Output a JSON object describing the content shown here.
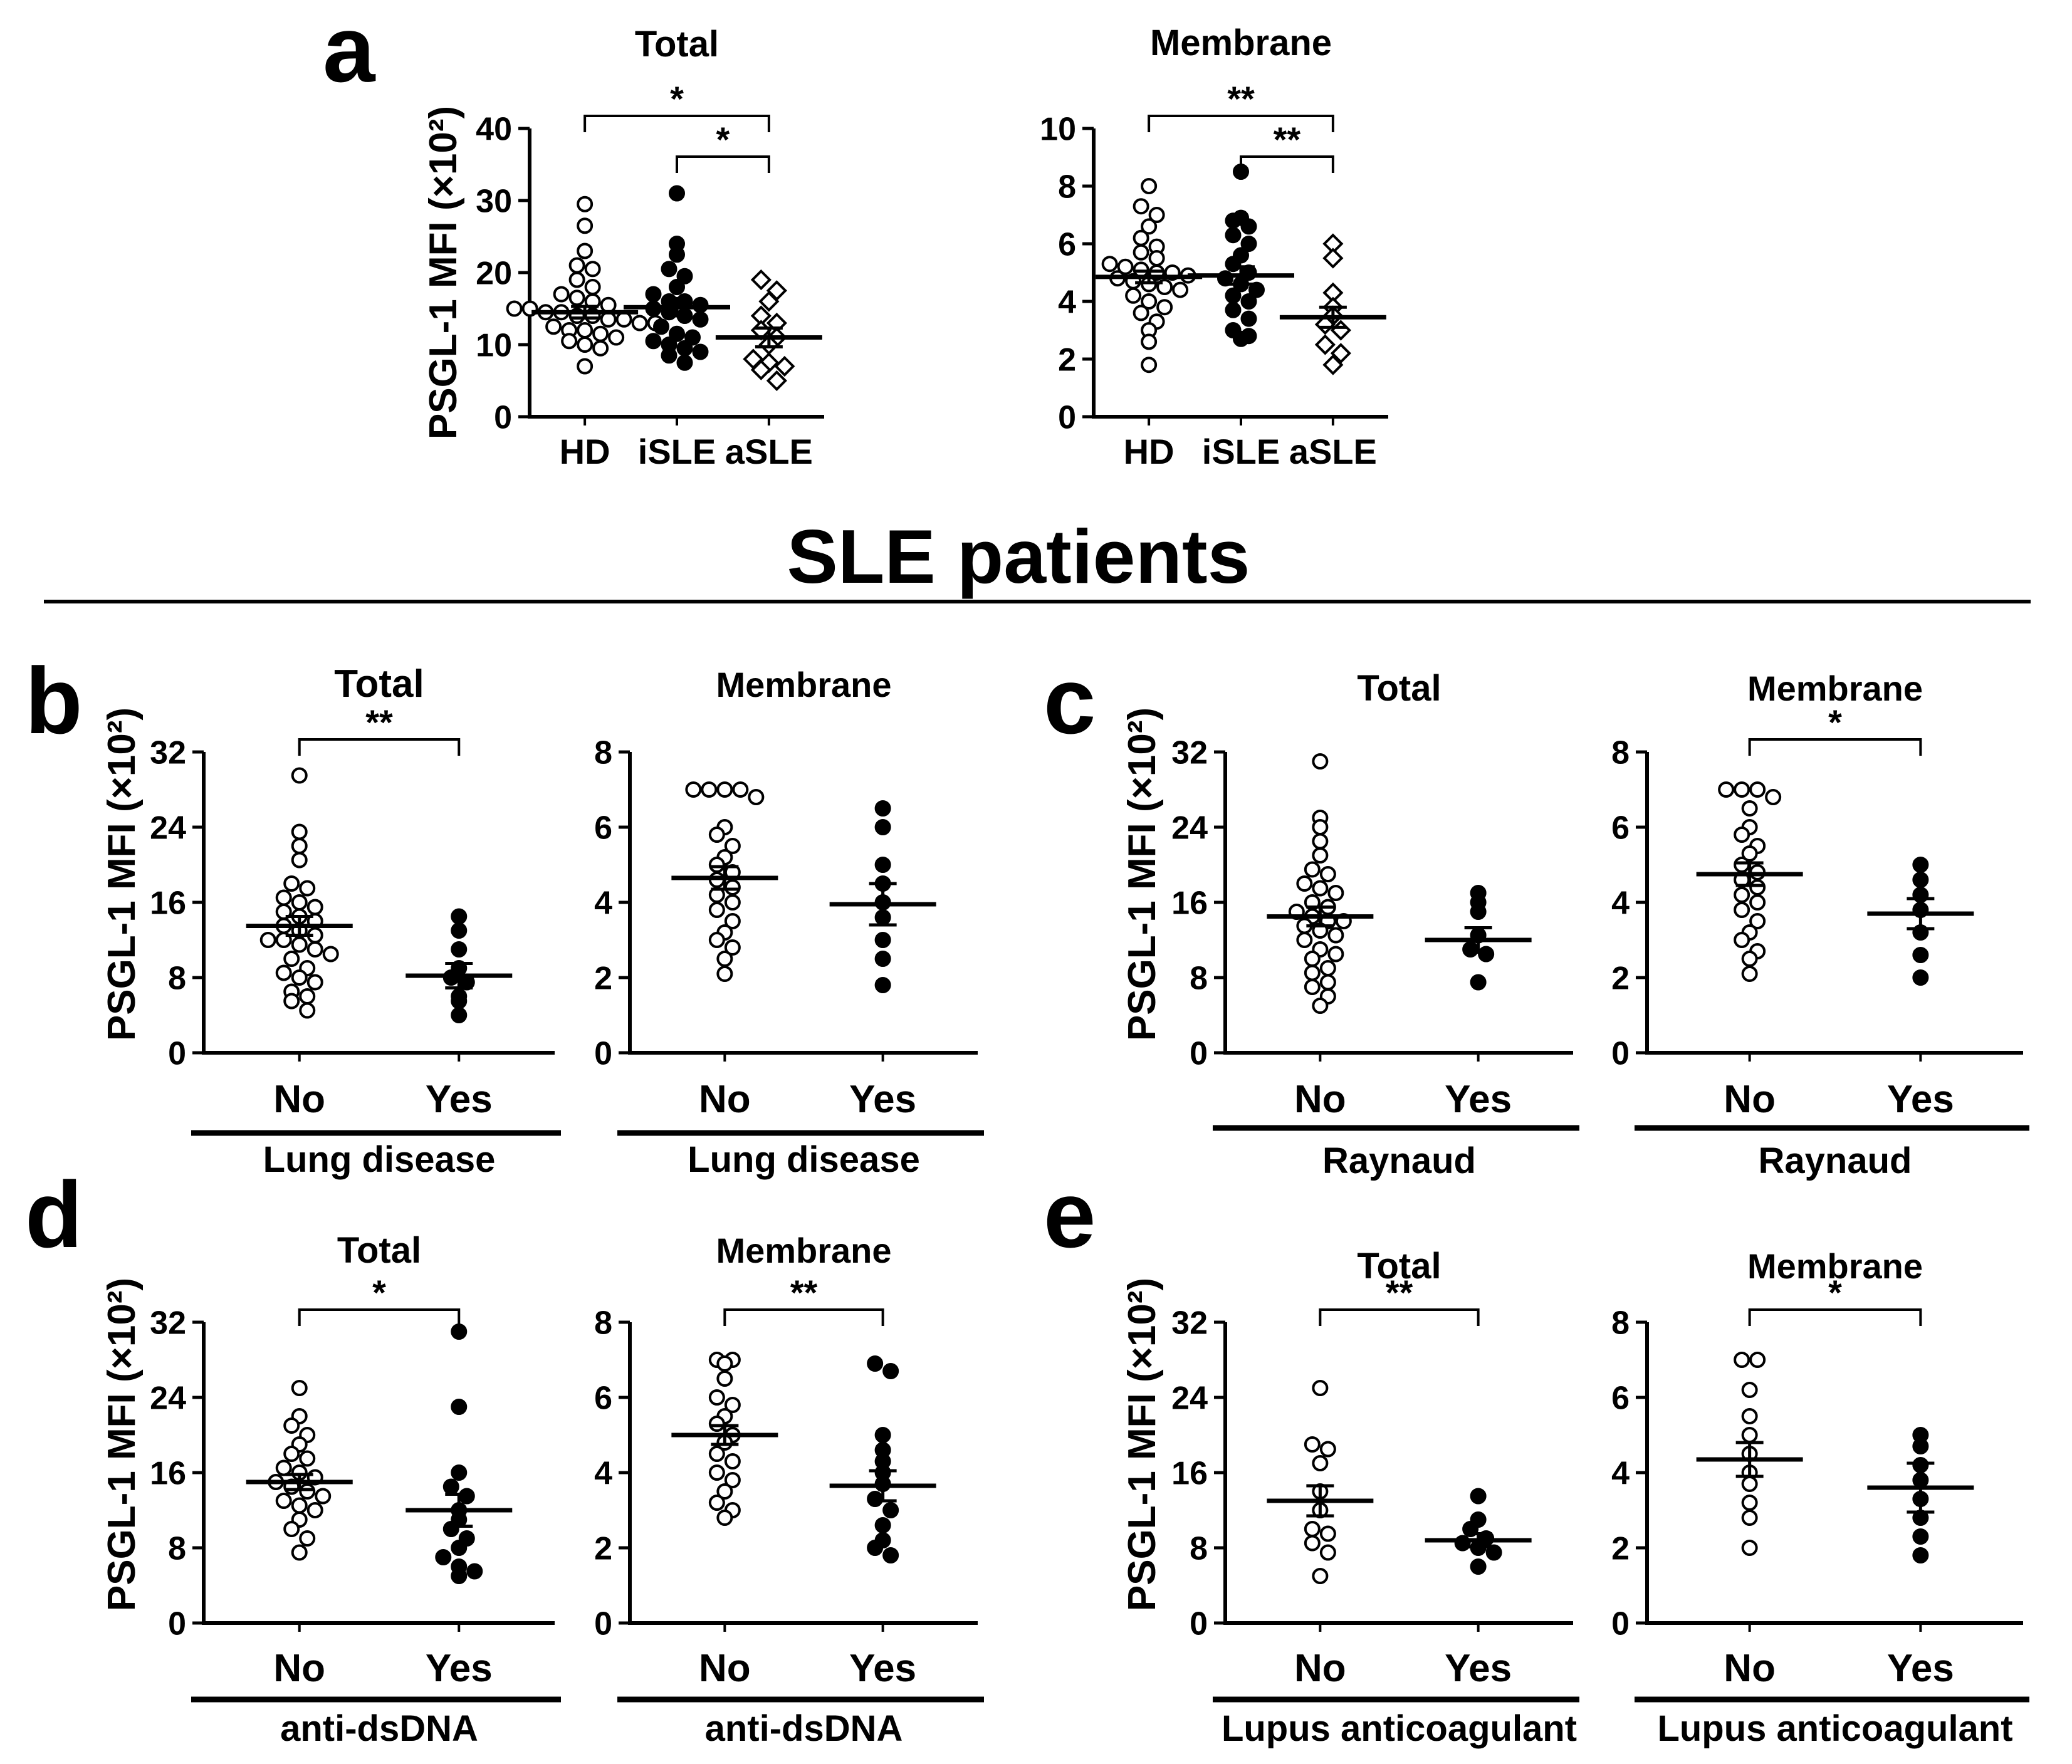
{
  "figure": {
    "section_heading": "SLE patients",
    "y_axis_label": "PSGL-1 MFI (×10²)",
    "panel_letters": {
      "a": "a",
      "b": "b",
      "c": "c",
      "d": "d",
      "e": "e"
    }
  },
  "chart_data": [
    {
      "id": "a-total",
      "panel": "a",
      "type": "scatter",
      "title": "Total",
      "ylabel": "PSGL-1 MFI (×10²)",
      "xlabel": "",
      "ylim": [
        0,
        40
      ],
      "yticks": [
        0,
        10,
        20,
        30,
        40
      ],
      "categories": [
        "HD",
        "iSLE",
        "aSLE"
      ],
      "series": [
        {
          "name": "HD",
          "marker": "open-circle",
          "mean": 14.5,
          "sem": 0.8,
          "values": [
            29.5,
            26.5,
            23,
            21,
            20.5,
            19,
            18,
            17,
            16.5,
            16,
            15.5,
            15,
            15,
            14.5,
            14.5,
            14,
            14,
            13.5,
            13.5,
            13,
            13,
            12.5,
            12,
            12,
            11.5,
            11,
            10.5,
            10,
            9.5,
            7
          ]
        },
        {
          "name": "iSLE",
          "marker": "filled-circle",
          "mean": 15.2,
          "sem": 1.2,
          "values": [
            31,
            24,
            22.5,
            20.5,
            19.5,
            18,
            17,
            16,
            16,
            15.5,
            15,
            14.5,
            14,
            13.5,
            12.5,
            11.5,
            11,
            10.5,
            10,
            9.5,
            9,
            8.5,
            7.5
          ]
        },
        {
          "name": "aSLE",
          "marker": "open-diamond",
          "mean": 11,
          "sem": 1.3,
          "values": [
            19,
            17.5,
            16,
            14,
            13,
            12,
            11,
            10,
            8,
            7.5,
            7,
            6.5,
            5
          ]
        }
      ],
      "significance": [
        {
          "from": "HD",
          "to": "aSLE",
          "label": "*"
        },
        {
          "from": "iSLE",
          "to": "aSLE",
          "label": "*"
        }
      ]
    },
    {
      "id": "a-membrane",
      "panel": "a",
      "type": "scatter",
      "title": "Membrane",
      "ylabel": "",
      "xlabel": "",
      "ylim": [
        0,
        10
      ],
      "yticks": [
        0,
        2,
        4,
        6,
        8,
        10
      ],
      "categories": [
        "HD",
        "iSLE",
        "aSLE"
      ],
      "series": [
        {
          "name": "HD",
          "marker": "open-circle",
          "mean": 4.85,
          "sem": 0.2,
          "values": [
            8,
            7.3,
            7,
            6.6,
            6.2,
            5.9,
            5.7,
            5.5,
            5.3,
            5.2,
            5.1,
            5,
            5,
            4.9,
            4.8,
            4.7,
            4.6,
            4.5,
            4.4,
            4.2,
            4,
            3.8,
            3.6,
            3.3,
            3,
            2.6,
            1.8
          ]
        },
        {
          "name": "iSLE",
          "marker": "filled-circle",
          "mean": 4.9,
          "sem": 0.3,
          "values": [
            8.5,
            6.9,
            6.8,
            6.6,
            6.3,
            6,
            5.6,
            5.3,
            5,
            4.8,
            4.6,
            4.4,
            4.2,
            4,
            3.7,
            3.4,
            3,
            2.8,
            2.7
          ]
        },
        {
          "name": "aSLE",
          "marker": "open-diamond",
          "mean": 3.45,
          "sem": 0.35,
          "values": [
            6,
            5.5,
            4.3,
            3.8,
            3.5,
            3.2,
            3,
            2.5,
            2.2,
            1.8
          ]
        }
      ],
      "significance": [
        {
          "from": "HD",
          "to": "aSLE",
          "label": "**"
        },
        {
          "from": "iSLE",
          "to": "aSLE",
          "label": "**"
        }
      ]
    },
    {
      "id": "b-total",
      "panel": "b",
      "type": "scatter",
      "title": "Total",
      "ylabel": "PSGL-1 MFI (×10²)",
      "xlabel": "Lung disease",
      "ylim": [
        0,
        32
      ],
      "yticks": [
        0,
        8,
        16,
        24,
        32
      ],
      "categories": [
        "No",
        "Yes"
      ],
      "series": [
        {
          "name": "No",
          "marker": "open-circle",
          "mean": 13.5,
          "sem": 1.0,
          "values": [
            29.5,
            23.5,
            22,
            20.5,
            18,
            17.5,
            16.5,
            16,
            15.5,
            15,
            14.5,
            14,
            13.5,
            13,
            12.5,
            12,
            12,
            11.5,
            11,
            10.5,
            10,
            9,
            8.5,
            8,
            7.5,
            6.5,
            6,
            5.5,
            4.5
          ]
        },
        {
          "name": "Yes",
          "marker": "filled-circle",
          "mean": 8.2,
          "sem": 1.3,
          "values": [
            14.5,
            13,
            11,
            9,
            8,
            7.5,
            6,
            5.5,
            4
          ]
        }
      ],
      "significance": [
        {
          "from": "No",
          "to": "Yes",
          "label": "**"
        }
      ]
    },
    {
      "id": "b-membrane",
      "panel": "b",
      "type": "scatter",
      "title": "Membrane",
      "ylabel": "",
      "xlabel": "Lung disease",
      "ylim": [
        0,
        8
      ],
      "yticks": [
        0,
        2,
        4,
        6,
        8
      ],
      "categories": [
        "No",
        "Yes"
      ],
      "series": [
        {
          "name": "No",
          "marker": "open-circle",
          "mean": 4.65,
          "sem": 0.3,
          "values": [
            7,
            7,
            7,
            7,
            6.8,
            6,
            5.8,
            5.5,
            5.2,
            5,
            4.8,
            4.6,
            4.4,
            4.2,
            4,
            3.8,
            3.5,
            3.2,
            3,
            2.8,
            2.5,
            2.1
          ]
        },
        {
          "name": "Yes",
          "marker": "filled-circle",
          "mean": 3.95,
          "sem": 0.55,
          "values": [
            6.5,
            6,
            5,
            4.5,
            4,
            3.6,
            3,
            2.5,
            1.8
          ]
        }
      ],
      "significance": []
    },
    {
      "id": "c-total",
      "panel": "c",
      "type": "scatter",
      "title": "Total",
      "ylabel": "PSGL-1 MFI (×10²)",
      "xlabel": "Raynaud",
      "ylim": [
        0,
        32
      ],
      "yticks": [
        0,
        8,
        16,
        24,
        32
      ],
      "categories": [
        "No",
        "Yes"
      ],
      "series": [
        {
          "name": "No",
          "marker": "open-circle",
          "mean": 14.5,
          "sem": 1.0,
          "values": [
            31,
            25,
            24,
            22.5,
            21,
            19.5,
            19,
            18,
            17.5,
            17,
            16,
            15.5,
            15,
            14.5,
            14,
            14,
            13.5,
            13,
            12.5,
            12,
            11,
            10.5,
            10,
            9,
            8.5,
            7.5,
            7,
            6,
            5
          ]
        },
        {
          "name": "Yes",
          "marker": "filled-circle",
          "mean": 12,
          "sem": 1.3,
          "values": [
            17,
            16,
            15,
            12.5,
            11,
            10.5,
            7.5
          ]
        }
      ],
      "significance": []
    },
    {
      "id": "c-membrane",
      "panel": "c",
      "type": "scatter",
      "title": "Membrane",
      "ylabel": "",
      "xlabel": "Raynaud",
      "ylim": [
        0,
        8
      ],
      "yticks": [
        0,
        2,
        4,
        6,
        8
      ],
      "categories": [
        "No",
        "Yes"
      ],
      "series": [
        {
          "name": "No",
          "marker": "open-circle",
          "mean": 4.75,
          "sem": 0.3,
          "values": [
            7,
            7,
            7,
            6.8,
            6.5,
            6,
            5.8,
            5.5,
            5.3,
            5,
            4.8,
            4.6,
            4.4,
            4.2,
            4,
            3.8,
            3.5,
            3.2,
            3,
            2.7,
            2.5,
            2.1
          ]
        },
        {
          "name": "Yes",
          "marker": "filled-circle",
          "mean": 3.7,
          "sem": 0.4,
          "values": [
            5,
            4.6,
            4.2,
            3.8,
            3.2,
            2.6,
            2
          ]
        }
      ],
      "significance": [
        {
          "from": "No",
          "to": "Yes",
          "label": "*"
        }
      ]
    },
    {
      "id": "d-total",
      "panel": "d",
      "type": "scatter",
      "title": "Total",
      "ylabel": "PSGL-1 MFI (×10²)",
      "xlabel": "anti-dsDNA",
      "ylim": [
        0,
        32
      ],
      "yticks": [
        0,
        8,
        16,
        24,
        32
      ],
      "categories": [
        "No",
        "Yes"
      ],
      "series": [
        {
          "name": "No",
          "marker": "open-circle",
          "mean": 15,
          "sem": 0.8,
          "values": [
            25,
            22,
            21,
            20,
            19,
            18,
            17.5,
            16.5,
            16,
            15.5,
            15,
            14.5,
            14,
            13.5,
            13,
            12.5,
            12,
            11,
            10,
            9,
            7.5
          ]
        },
        {
          "name": "Yes",
          "marker": "filled-circle",
          "mean": 12,
          "sem": 1.7,
          "values": [
            31,
            23,
            16,
            14.5,
            13.5,
            12,
            11,
            10,
            9,
            8,
            7,
            6,
            5.5,
            5
          ]
        }
      ],
      "significance": [
        {
          "from": "No",
          "to": "Yes",
          "label": "*"
        }
      ]
    },
    {
      "id": "d-membrane",
      "panel": "d",
      "type": "scatter",
      "title": "Membrane",
      "ylabel": "",
      "xlabel": "anti-dsDNA",
      "ylim": [
        0,
        8
      ],
      "yticks": [
        0,
        2,
        4,
        6,
        8
      ],
      "categories": [
        "No",
        "Yes"
      ],
      "series": [
        {
          "name": "No",
          "marker": "open-circle",
          "mean": 5,
          "sem": 0.25,
          "values": [
            7,
            7,
            6.9,
            6.5,
            6,
            5.8,
            5.5,
            5.3,
            5,
            4.8,
            4.5,
            4.3,
            4,
            3.8,
            3.5,
            3.2,
            3,
            2.8
          ]
        },
        {
          "name": "Yes",
          "marker": "filled-circle",
          "mean": 3.65,
          "sem": 0.4,
          "values": [
            6.9,
            6.7,
            5,
            4.6,
            4.3,
            4,
            3.7,
            3.3,
            3,
            2.6,
            2.2,
            2,
            1.8
          ]
        }
      ],
      "significance": [
        {
          "from": "No",
          "to": "Yes",
          "label": "**"
        }
      ]
    },
    {
      "id": "e-total",
      "panel": "e",
      "type": "scatter",
      "title": "Total",
      "ylabel": "PSGL-1 MFI (×10²)",
      "xlabel": "Lupus anticoagulant",
      "ylim": [
        0,
        32
      ],
      "yticks": [
        0,
        8,
        16,
        24,
        32
      ],
      "categories": [
        "No",
        "Yes"
      ],
      "series": [
        {
          "name": "No",
          "marker": "open-circle",
          "mean": 13,
          "sem": 1.6,
          "values": [
            25,
            19,
            18.5,
            17,
            14,
            12,
            10,
            9.5,
            8.5,
            7.5,
            5
          ]
        },
        {
          "name": "Yes",
          "marker": "filled-circle",
          "mean": 8.8,
          "sem": 0.7,
          "values": [
            13.5,
            11,
            10,
            9,
            8.5,
            8,
            7.5,
            6
          ]
        }
      ],
      "significance": [
        {
          "from": "No",
          "to": "Yes",
          "label": "**"
        }
      ]
    },
    {
      "id": "e-membrane",
      "panel": "e",
      "type": "scatter",
      "title": "Membrane",
      "ylabel": "",
      "xlabel": "Lupus anticoagulant",
      "ylim": [
        0,
        8
      ],
      "yticks": [
        0,
        2,
        4,
        6,
        8
      ],
      "categories": [
        "No",
        "Yes"
      ],
      "series": [
        {
          "name": "No",
          "marker": "open-circle",
          "mean": 4.35,
          "sem": 0.45,
          "values": [
            7,
            7,
            6.2,
            5.5,
            5,
            4.5,
            4,
            3.7,
            3.2,
            2.8,
            2
          ]
        },
        {
          "name": "Yes",
          "marker": "filled-circle",
          "mean": 3.6,
          "sem": 0.65,
          "values": [
            5,
            4.7,
            4.2,
            3.8,
            3.3,
            2.8,
            2.3,
            1.8
          ]
        }
      ],
      "significance": [
        {
          "from": "No",
          "to": "Yes",
          "label": "*"
        }
      ]
    }
  ]
}
